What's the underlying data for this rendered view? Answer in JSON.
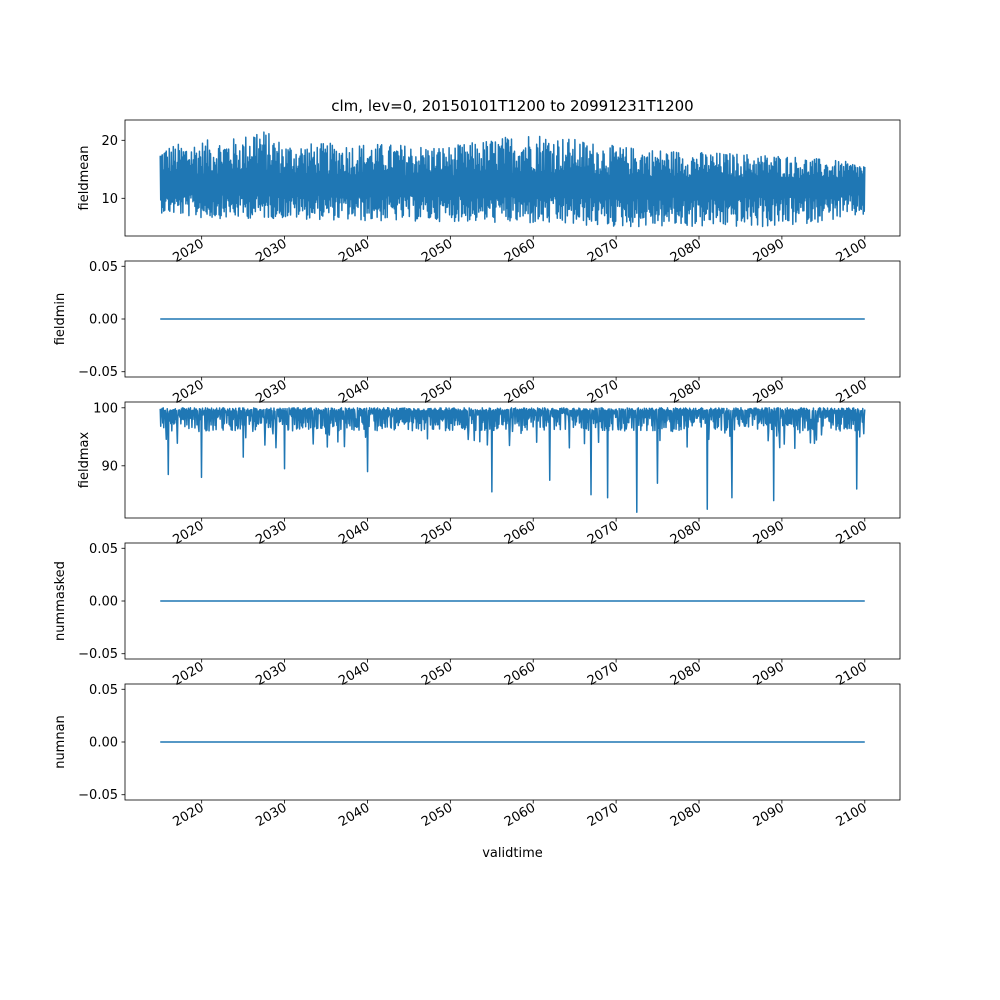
{
  "figure": {
    "title": "clm, lev=0, 20150101T1200 to 20991231T1200",
    "xlabel": "validtime"
  },
  "chart_data": [
    {
      "type": "line",
      "ylabel": "fieldmean",
      "x_range": [
        2015.0,
        2100.0
      ],
      "xlim": [
        2010.75,
        2104.25
      ],
      "ylim": [
        3.5,
        23.5
      ],
      "y_ticks": [
        10,
        20
      ],
      "y_tick_labels": [
        "10",
        "20"
      ],
      "series": [
        {
          "color": "#1f77b4",
          "baseline": 12,
          "envelope": [
            {
              "x": 2015,
              "low": 7.5,
              "high": 19.0
            },
            {
              "x": 2020,
              "low": 6.5,
              "high": 20.0
            },
            {
              "x": 2025,
              "low": 6.5,
              "high": 20.5
            },
            {
              "x": 2026.5,
              "low": 6.5,
              "high": 22.8
            },
            {
              "x": 2030,
              "low": 6.5,
              "high": 19.5
            },
            {
              "x": 2040,
              "low": 6.0,
              "high": 19.5
            },
            {
              "x": 2050,
              "low": 6.0,
              "high": 19.0
            },
            {
              "x": 2060,
              "low": 5.5,
              "high": 21.5
            },
            {
              "x": 2070,
              "low": 5.0,
              "high": 19.0
            },
            {
              "x": 2080,
              "low": 5.0,
              "high": 18.0
            },
            {
              "x": 2090,
              "low": 5.0,
              "high": 17.5
            },
            {
              "x": 2100,
              "low": 7.0,
              "high": 16.0
            }
          ]
        }
      ]
    },
    {
      "type": "line",
      "ylabel": "fieldmin",
      "x_range": [
        2015.0,
        2100.0
      ],
      "xlim": [
        2010.75,
        2104.25
      ],
      "ylim": [
        -0.055,
        0.055
      ],
      "y_ticks": [
        -0.05,
        0.0,
        0.05
      ],
      "y_tick_labels": [
        "−0.05",
        "0.00",
        "0.05"
      ],
      "series": [
        {
          "color": "#1f77b4",
          "constant": 0.0
        }
      ]
    },
    {
      "type": "line",
      "ylabel": "fieldmax",
      "x_range": [
        2015.0,
        2100.0
      ],
      "xlim": [
        2010.75,
        2104.25
      ],
      "ylim": [
        81.0,
        101.0
      ],
      "y_ticks": [
        90,
        100
      ],
      "y_tick_labels": [
        "90",
        "100"
      ],
      "series": [
        {
          "color": "#1f77b4",
          "baseline": 99.6,
          "dips": [
            {
              "x": 2016,
              "low": 88.5
            },
            {
              "x": 2020,
              "low": 88.0
            },
            {
              "x": 2025,
              "low": 91.5
            },
            {
              "x": 2030,
              "low": 89.5
            },
            {
              "x": 2040,
              "low": 89.0
            },
            {
              "x": 2055,
              "low": 85.5
            },
            {
              "x": 2062,
              "low": 87.5
            },
            {
              "x": 2067,
              "low": 85.0
            },
            {
              "x": 2069,
              "low": 84.5
            },
            {
              "x": 2072.5,
              "low": 82.0
            },
            {
              "x": 2075,
              "low": 87.0
            },
            {
              "x": 2081,
              "low": 82.5
            },
            {
              "x": 2084,
              "low": 84.5
            },
            {
              "x": 2089,
              "low": 84.0
            },
            {
              "x": 2099,
              "low": 86.0
            }
          ]
        }
      ]
    },
    {
      "type": "line",
      "ylabel": "nummasked",
      "x_range": [
        2015.0,
        2100.0
      ],
      "xlim": [
        2010.75,
        2104.25
      ],
      "ylim": [
        -0.055,
        0.055
      ],
      "y_ticks": [
        -0.05,
        0.0,
        0.05
      ],
      "y_tick_labels": [
        "−0.05",
        "0.00",
        "0.05"
      ],
      "series": [
        {
          "color": "#1f77b4",
          "constant": 0.0
        }
      ]
    },
    {
      "type": "line",
      "ylabel": "numnan",
      "x_range": [
        2015.0,
        2100.0
      ],
      "xlim": [
        2010.75,
        2104.25
      ],
      "ylim": [
        -0.055,
        0.055
      ],
      "y_ticks": [
        -0.05,
        0.0,
        0.05
      ],
      "y_tick_labels": [
        "−0.05",
        "0.00",
        "0.05"
      ],
      "series": [
        {
          "color": "#1f77b4",
          "constant": 0.0
        }
      ]
    }
  ],
  "x_ticks": [
    2020,
    2030,
    2040,
    2050,
    2060,
    2070,
    2080,
    2090,
    2100
  ],
  "x_tick_labels": [
    "2020",
    "2030",
    "2040",
    "2050",
    "2060",
    "2070",
    "2080",
    "2090",
    "2100"
  ]
}
